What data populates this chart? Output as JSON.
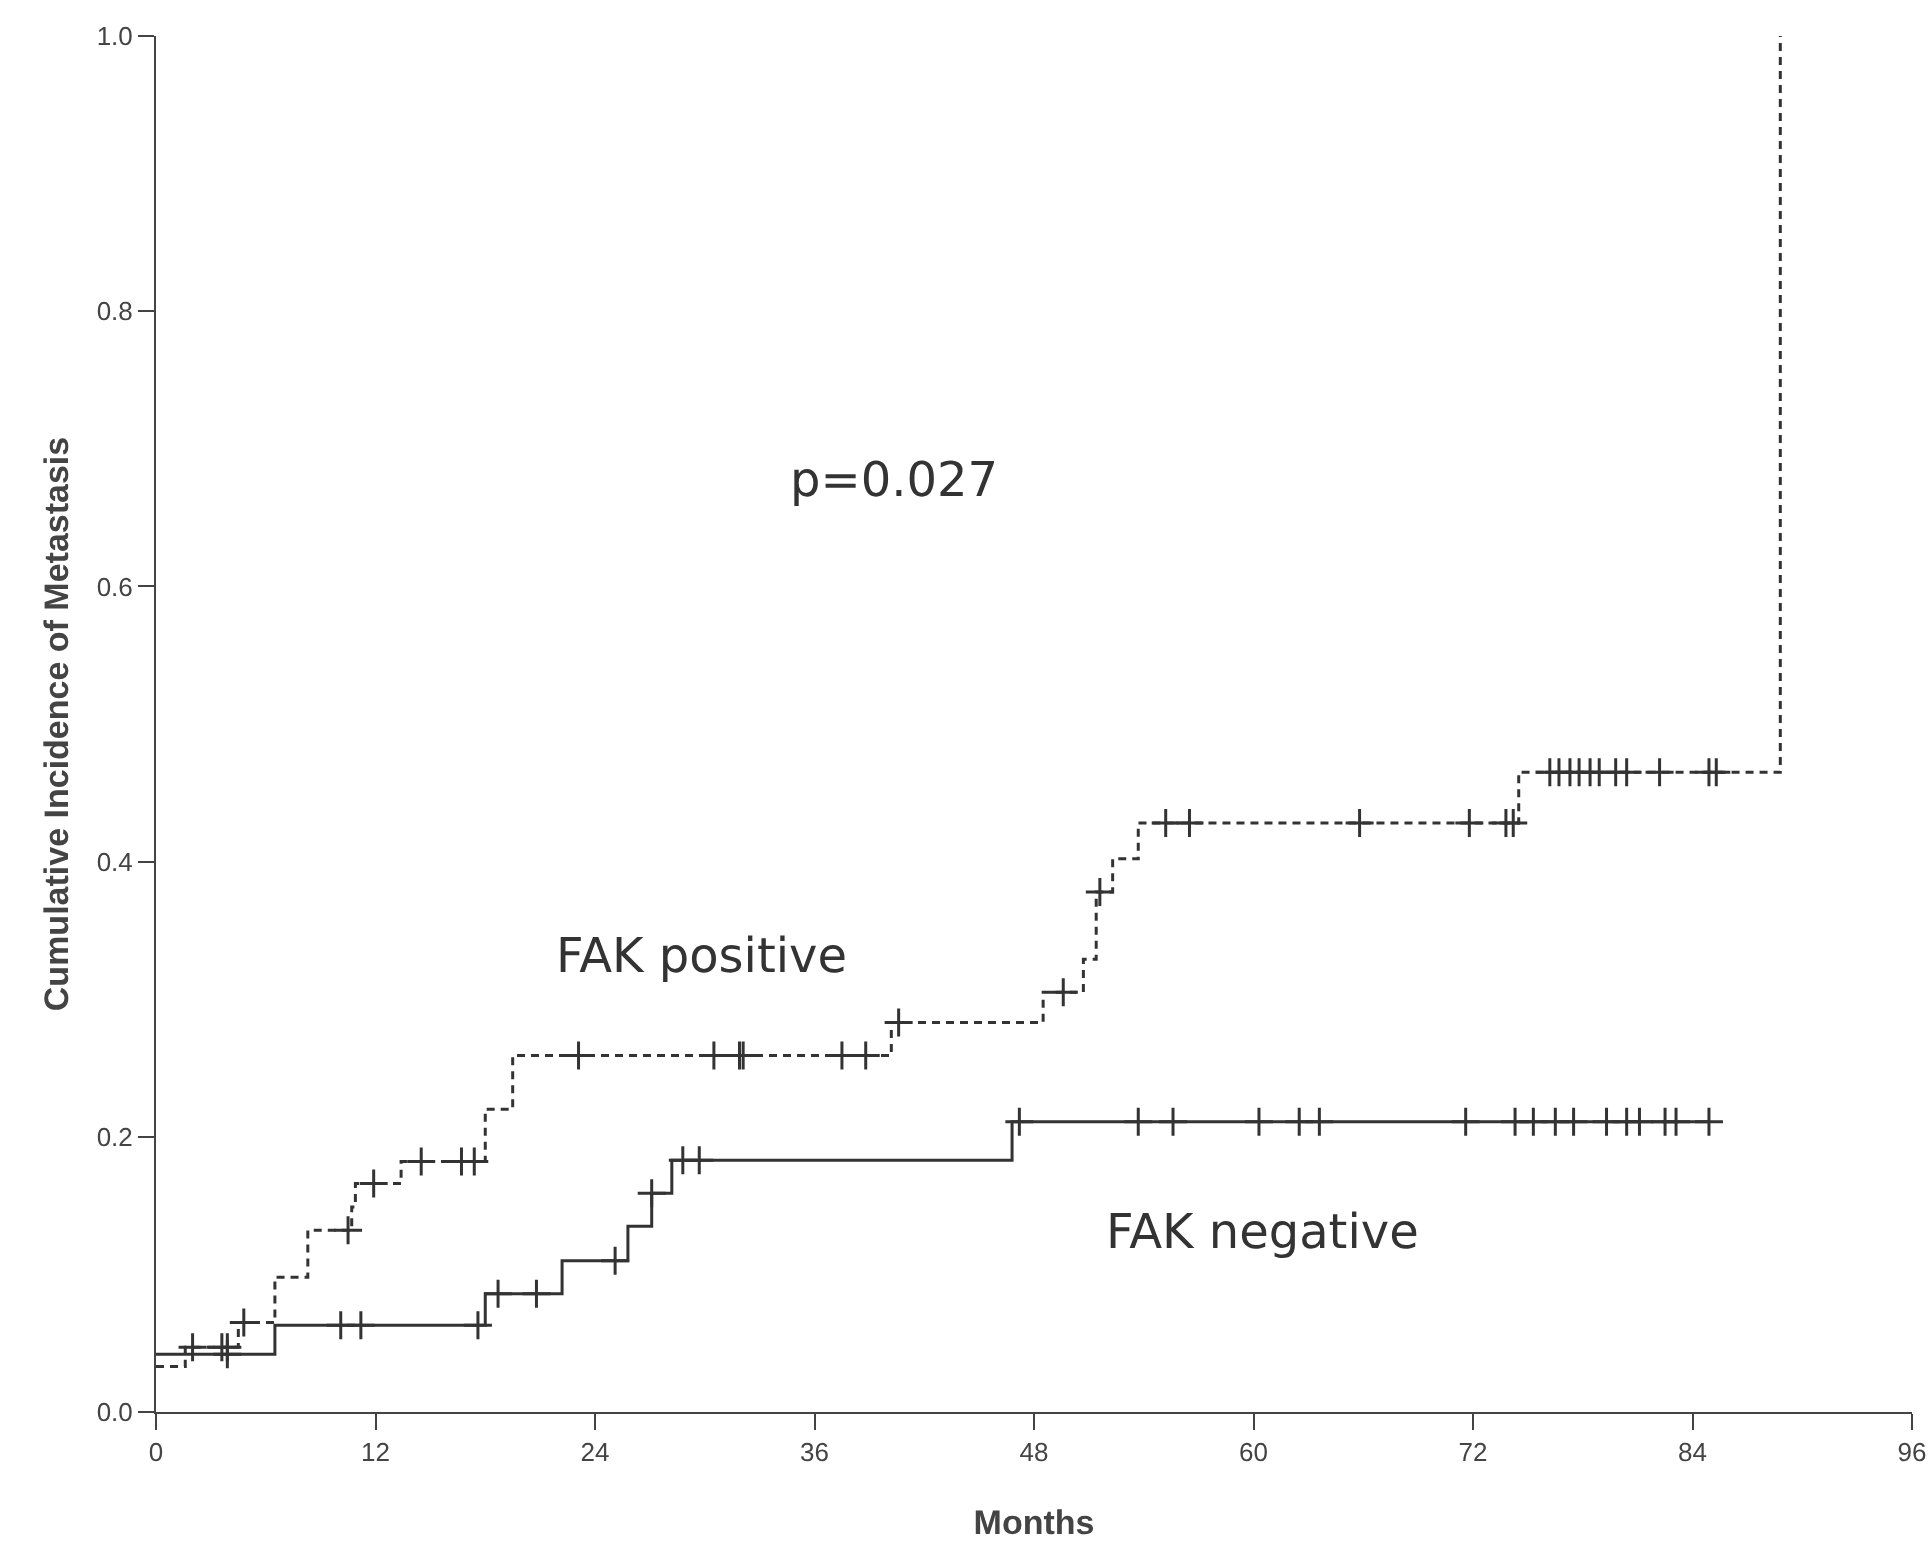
{
  "chart_data": {
    "type": "step",
    "xlabel": "Months",
    "ylabel": "Cumulative Incidence of Metastasis",
    "xlim": [
      0,
      96
    ],
    "xticks": [
      0,
      12,
      24,
      36,
      48,
      60,
      72,
      84,
      96
    ],
    "ylim": [
      0,
      1
    ],
    "yticks": [
      {
        "value": 0,
        "label": "0.0"
      },
      {
        "value": 0.2,
        "label": "0.2"
      },
      {
        "value": 0.4,
        "label": "0.4"
      },
      {
        "value": 0.6,
        "label": "0.6"
      },
      {
        "value": 0.8,
        "label": "0.8"
      },
      {
        "value": 1,
        "label": "1.0"
      }
    ],
    "grid": false,
    "legend": false,
    "series": [
      {
        "name": "FAK positive",
        "color": "#333333",
        "line_style": "dashed",
        "marker": "none",
        "x": [
          0,
          1.6,
          4.5,
          6.5,
          8.3,
          10.7,
          10.9,
          13.4,
          18.0,
          19.5,
          40.2,
          48.5,
          50.7,
          51.4,
          52.3,
          53.7,
          74.5,
          88.8,
          88.8
        ],
        "values": [
          0.033,
          0.047,
          0.065,
          0.098,
          0.132,
          0.149,
          0.166,
          0.182,
          0.22,
          0.259,
          0.283,
          0.305,
          0.329,
          0.378,
          0.402,
          0.428,
          0.465,
          0.465,
          1.0
        ]
      },
      {
        "name": "FAK negative",
        "color": "#333333",
        "line_style": "solid",
        "marker": "none",
        "x": [
          0,
          6.5,
          18.0,
          22.2,
          25.8,
          27.1,
          28.2,
          46.8,
          84.9
        ],
        "values": [
          0.042,
          0.063,
          0.086,
          0.11,
          0.135,
          0.159,
          0.183,
          0.211,
          0.211
        ]
      },
      {
        "type": "scatter",
        "color": "#333333",
        "marker": "cross",
        "x": [
          2.0,
          3.6,
          3.9,
          4.8,
          10.5,
          11.9,
          14.5,
          16.7,
          17.4,
          23.1,
          30.5,
          31.9,
          32.1,
          37.5,
          38.8,
          40.6,
          49.6,
          51.6,
          55.2,
          56.5,
          65.8,
          71.8,
          73.8,
          74.2,
          76.2,
          76.7,
          77.3,
          77.8,
          78.4,
          78.9,
          79.8,
          80.4,
          82.2,
          84.9,
          85.3
        ],
        "values": [
          0.047,
          0.047,
          0.047,
          0.065,
          0.132,
          0.166,
          0.182,
          0.182,
          0.182,
          0.259,
          0.259,
          0.259,
          0.259,
          0.259,
          0.259,
          0.283,
          0.305,
          0.378,
          0.428,
          0.428,
          0.428,
          0.428,
          0.428,
          0.428,
          0.465,
          0.465,
          0.465,
          0.465,
          0.465,
          0.465,
          0.465,
          0.465,
          0.465,
          0.465,
          0.465
        ]
      },
      {
        "type": "scatter",
        "color": "#333333",
        "marker": "cross",
        "x": [
          3.9,
          10.1,
          11.2,
          17.6,
          18.7,
          20.8,
          25.1,
          27.1,
          28.8,
          29.7,
          47.2,
          53.7,
          55.6,
          60.3,
          62.5,
          63.6,
          71.6,
          74.3,
          75.3,
          76.5,
          77.5,
          79.3,
          80.4,
          81.1,
          82.5,
          83.1,
          84.9
        ],
        "values": [
          0.042,
          0.063,
          0.063,
          0.063,
          0.086,
          0.086,
          0.11,
          0.159,
          0.183,
          0.183,
          0.211,
          0.211,
          0.211,
          0.211,
          0.211,
          0.211,
          0.211,
          0.211,
          0.211,
          0.211,
          0.211,
          0.211,
          0.211,
          0.211,
          0.211,
          0.211,
          0.211
        ]
      }
    ],
    "annotations": [
      "p=0.027"
    ]
  }
}
